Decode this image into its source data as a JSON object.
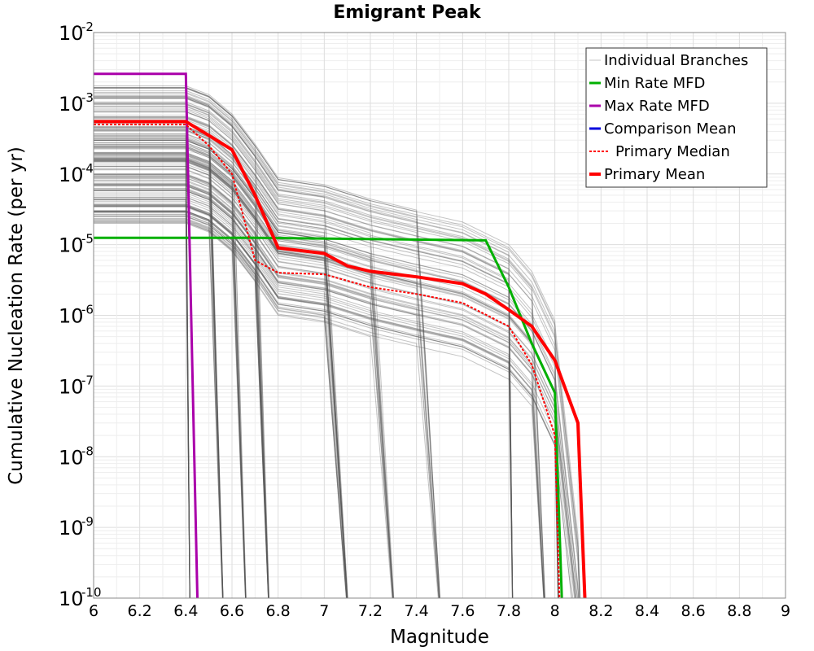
{
  "chart_data": {
    "type": "line",
    "title": "Emigrant Peak",
    "xlabel": "Magnitude",
    "ylabel": "Cumulative Nucleation Rate (per yr)",
    "xlim": [
      6,
      9
    ],
    "ylim": [
      1e-10,
      0.01
    ],
    "yscale": "log",
    "grid": true,
    "legend_position": "top-right",
    "x_ticks": [
      "6",
      "6.2",
      "6.4",
      "6.6",
      "6.8",
      "7",
      "7.2",
      "7.4",
      "7.6",
      "7.8",
      "8",
      "8.2",
      "8.4",
      "8.6",
      "8.8",
      "9"
    ],
    "y_ticks": [
      {
        "base": "10",
        "exp": "-10"
      },
      {
        "base": "10",
        "exp": "-9"
      },
      {
        "base": "10",
        "exp": "-8"
      },
      {
        "base": "10",
        "exp": "-7"
      },
      {
        "base": "10",
        "exp": "-6"
      },
      {
        "base": "10",
        "exp": "-5"
      },
      {
        "base": "10",
        "exp": "-4"
      },
      {
        "base": "10",
        "exp": "-3"
      },
      {
        "base": "10",
        "exp": "-2"
      }
    ],
    "series": [
      {
        "name": "Individual Branches",
        "color": "#555555",
        "style": "thin",
        "representative": true,
        "x": [
          6.0,
          6.4,
          6.5,
          6.6,
          6.7,
          6.8,
          7.0,
          7.2,
          7.4,
          7.6,
          7.8,
          7.9,
          8.0,
          8.1
        ],
        "y": [
          0.0002,
          0.0002,
          0.00015,
          8e-05,
          3e-05,
          1e-05,
          8e-06,
          5e-06,
          3.5e-06,
          2.5e-06,
          1.2e-06,
          5e-07,
          1e-07,
          1e-10
        ]
      },
      {
        "name": "Min Rate MFD",
        "color": "#00b000",
        "style": "solid",
        "x": [
          6.0,
          6.7,
          7.7,
          7.8,
          7.9,
          8.0,
          8.03
        ],
        "y": [
          1.25e-05,
          1.25e-05,
          1.15e-05,
          2.5e-06,
          4e-07,
          8e-08,
          1e-10
        ]
      },
      {
        "name": "Max Rate MFD",
        "color": "#aa00aa",
        "style": "solid",
        "x": [
          6.0,
          6.4,
          6.45
        ],
        "y": [
          0.0026,
          0.0026,
          1e-10
        ]
      },
      {
        "name": "Comparison Mean",
        "color": "#0000dd",
        "style": "solid",
        "x": [],
        "y": []
      },
      {
        "name": "Primary Median",
        "color": "#ff0000",
        "style": "dotted",
        "x": [
          6.0,
          6.4,
          6.5,
          6.6,
          6.7,
          6.8,
          7.0,
          7.2,
          7.4,
          7.6,
          7.8,
          7.9,
          8.0,
          8.02
        ],
        "y": [
          0.0005,
          0.0005,
          0.00025,
          0.0001,
          6e-06,
          4e-06,
          3.8e-06,
          2.5e-06,
          2e-06,
          1.5e-06,
          7e-07,
          2e-07,
          2e-08,
          1e-10
        ]
      },
      {
        "name": "Primary Mean",
        "color": "#ff0000",
        "style": "thick",
        "x": [
          6.0,
          6.4,
          6.5,
          6.6,
          6.7,
          6.8,
          7.0,
          7.1,
          7.2,
          7.4,
          7.6,
          7.7,
          7.8,
          7.9,
          8.0,
          8.1,
          8.13
        ],
        "y": [
          0.00055,
          0.00055,
          0.00035,
          0.00022,
          5e-05,
          9e-06,
          7.5e-06,
          5e-06,
          4.2e-06,
          3.5e-06,
          2.8e-06,
          2e-06,
          1.2e-06,
          7e-07,
          2.3e-07,
          3e-08,
          1e-10
        ]
      }
    ]
  }
}
